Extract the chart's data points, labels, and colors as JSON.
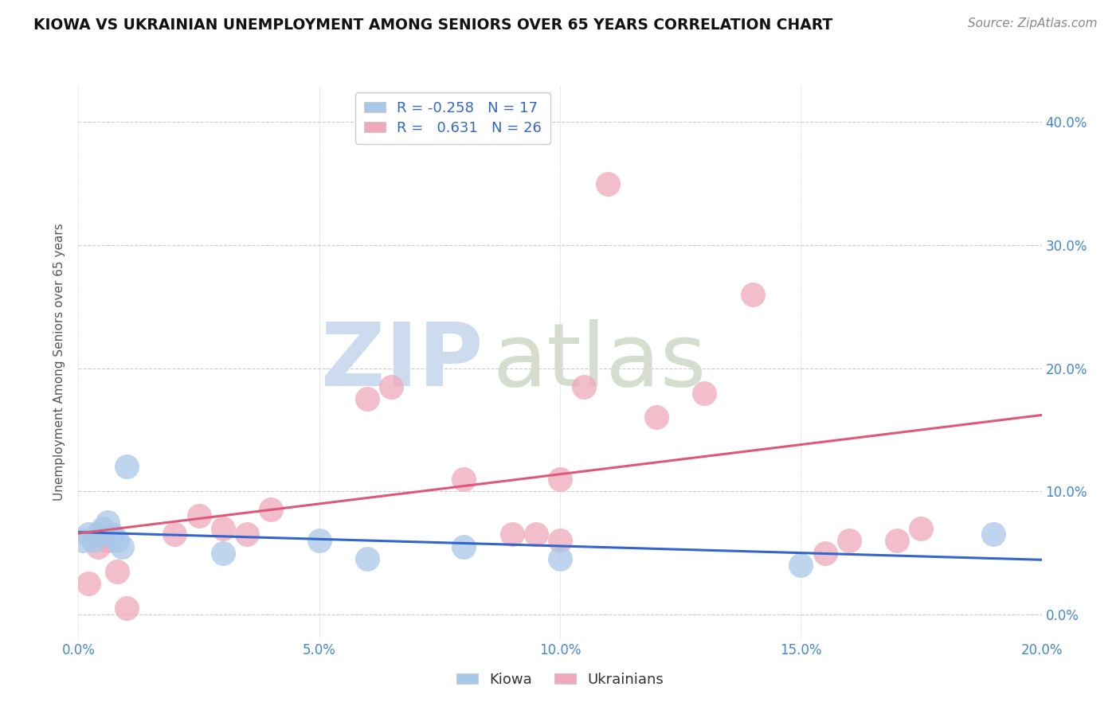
{
  "title": "KIOWA VS UKRAINIAN UNEMPLOYMENT AMONG SENIORS OVER 65 YEARS CORRELATION CHART",
  "source": "Source: ZipAtlas.com",
  "ylabel": "Unemployment Among Seniors over 65 years",
  "xlim": [
    0.0,
    0.2
  ],
  "ylim": [
    -0.02,
    0.43
  ],
  "xticks": [
    0.0,
    0.05,
    0.1,
    0.15,
    0.2
  ],
  "yticks": [
    0.0,
    0.1,
    0.2,
    0.3,
    0.4
  ],
  "background_color": "#ffffff",
  "grid_color": "#cccccc",
  "kiowa_color": "#a8c8e8",
  "ukrainian_color": "#f0a8bc",
  "kiowa_line_color": "#3366cc",
  "ukrainian_line_color": "#e05878",
  "tick_color": "#4488cc",
  "legend_R_kiowa": "-0.258",
  "legend_N_kiowa": "17",
  "legend_R_ukrainian": "0.631",
  "legend_N_ukrainian": "26",
  "kiowa_x": [
    0.001,
    0.002,
    0.003,
    0.004,
    0.005,
    0.006,
    0.007,
    0.008,
    0.009,
    0.01,
    0.03,
    0.05,
    0.06,
    0.08,
    0.1,
    0.15,
    0.19
  ],
  "kiowa_y": [
    0.06,
    0.065,
    0.06,
    0.065,
    0.07,
    0.075,
    0.065,
    0.06,
    0.055,
    0.12,
    0.05,
    0.06,
    0.045,
    0.055,
    0.045,
    0.04,
    0.065
  ],
  "ukrainian_x": [
    0.002,
    0.004,
    0.006,
    0.008,
    0.01,
    0.02,
    0.025,
    0.03,
    0.035,
    0.04,
    0.06,
    0.065,
    0.08,
    0.09,
    0.095,
    0.1,
    0.1,
    0.105,
    0.11,
    0.12,
    0.13,
    0.14,
    0.155,
    0.16,
    0.17,
    0.175
  ],
  "ukrainian_y": [
    0.025,
    0.055,
    0.06,
    0.035,
    0.005,
    0.065,
    0.08,
    0.07,
    0.065,
    0.085,
    0.175,
    0.185,
    0.11,
    0.065,
    0.065,
    0.06,
    0.11,
    0.185,
    0.35,
    0.16,
    0.18,
    0.26,
    0.05,
    0.06,
    0.06,
    0.07
  ],
  "zip_color1": "#c8dcf0",
  "zip_color2": "#d8e8d0",
  "watermark_zip": "ZIP",
  "watermark_atlas": "atlas"
}
